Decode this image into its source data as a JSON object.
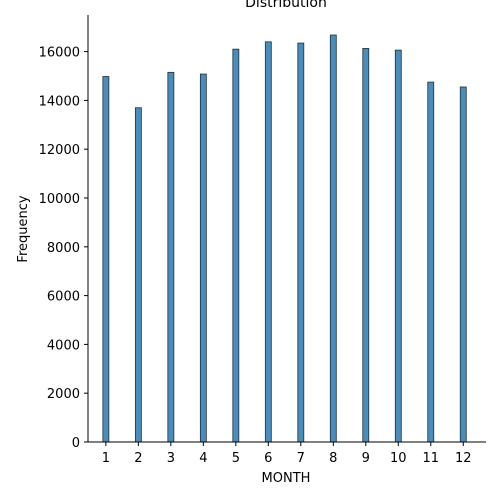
{
  "chart_data": {
    "type": "bar",
    "title": "Distribution",
    "xlabel": "MONTH",
    "ylabel": "Frequency",
    "x": [
      1,
      2,
      3,
      4,
      5,
      6,
      7,
      8,
      9,
      10,
      11,
      12
    ],
    "x_tick_labels": [
      "1",
      "2",
      "3",
      "4",
      "5",
      "6",
      "7",
      "8",
      "9",
      "10",
      "11",
      "12"
    ],
    "values": [
      14980,
      13700,
      15150,
      15080,
      16100,
      16400,
      16350,
      16680,
      16130,
      16060,
      14750,
      14550
    ],
    "y_ticks": [
      0,
      2000,
      4000,
      6000,
      8000,
      10000,
      12000,
      14000,
      16000
    ],
    "y_tick_labels": [
      "0",
      "2000",
      "4000",
      "6000",
      "8000",
      "10000",
      "12000",
      "14000",
      "16000"
    ],
    "xlim": [
      0.45,
      12.7
    ],
    "ylim": [
      0,
      17500
    ],
    "grid": false,
    "colors": {
      "bar_fill": "#4c8cb9",
      "bar_edge": "#1f2f3f",
      "axis": "#000000"
    }
  }
}
